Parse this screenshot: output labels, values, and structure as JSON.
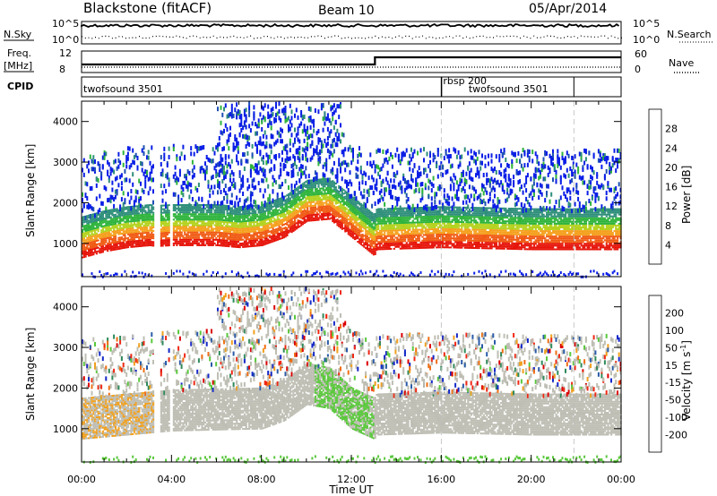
{
  "header": {
    "station": "Blackstone (fitACF)",
    "beam": "Beam 10",
    "date": "05/Apr/2014"
  },
  "strip_labels": {
    "nsky": "N.Sky",
    "nsearch": "N.Search",
    "freq_line1": "Freq.",
    "freq_line2": "[MHz]",
    "nave": "Nave",
    "cpid": "CPID"
  },
  "strip_ticks": {
    "nsky_left": [
      "10^5",
      "10^0"
    ],
    "nsky_right": [
      "10^5",
      "10^0"
    ],
    "freq_left": [
      "12",
      "8"
    ],
    "freq_right": [
      "60",
      "0"
    ]
  },
  "cpid_segments": [
    {
      "name": "twofsound 3501",
      "start": 0,
      "end": 16
    },
    {
      "name": "rbsp 200",
      "start": 16,
      "end": 16.02
    },
    {
      "name": "twofsound 3501",
      "start": 16.02,
      "end": 21.9
    }
  ],
  "colors": {
    "power": [
      "#0a1ee6",
      "#1e4fb4",
      "#2f8f7a",
      "#2fb43c",
      "#b4d21e",
      "#f5a01e",
      "#f05a14",
      "#e6140a"
    ],
    "velocity": [
      "#1428c8",
      "#2a5aa8",
      "#2e8a5a",
      "#5ac83c",
      "#bebeb4",
      "#b4b4aa",
      "#f0a01e",
      "#f06e14",
      "#f02814",
      "#dc0000"
    ]
  },
  "chart_data": [
    {
      "type": "heatmap",
      "title": "Power",
      "ylabel": "Slant Range [km]",
      "xlabel": "Time UT",
      "xlim": [
        0,
        24
      ],
      "ylim": [
        180,
        4500
      ],
      "x_ticks": [
        "00:00",
        "04:00",
        "08:00",
        "12:00",
        "16:00",
        "20:00",
        "00:00"
      ],
      "y_ticks": [
        "1000",
        "2000",
        "3000",
        "4000"
      ],
      "colorbar_label": "Power [dB]",
      "colorbar_ticks": [
        "28",
        "24",
        "20",
        "16",
        "12",
        "8",
        "4"
      ],
      "main_band_center_km": [
        [
          0,
          950
        ],
        [
          1,
          1100
        ],
        [
          2,
          1200
        ],
        [
          3,
          1250
        ],
        [
          3.3,
          1230
        ],
        [
          4,
          1250
        ],
        [
          6,
          1250
        ],
        [
          7,
          1200
        ],
        [
          8,
          1250
        ],
        [
          9,
          1450
        ],
        [
          10,
          1850
        ],
        [
          11,
          1900
        ],
        [
          12,
          1450
        ],
        [
          13,
          1000
        ],
        [
          13.1,
          1150
        ],
        [
          16,
          1200
        ],
        [
          20,
          1150
        ],
        [
          24,
          1150
        ]
      ],
      "data_gaps_hours": [
        [
          3.15,
          3.45
        ],
        [
          3.85,
          4.05
        ]
      ]
    },
    {
      "type": "heatmap",
      "title": "Velocity",
      "ylabel": "Slant Range [km]",
      "xlabel": "Time UT",
      "xlim": [
        0,
        24
      ],
      "ylim": [
        180,
        4500
      ],
      "x_ticks": [
        "00:00",
        "04:00",
        "08:00",
        "12:00",
        "16:00",
        "20:00",
        "00:00"
      ],
      "y_ticks": [
        "1000",
        "2000",
        "3000",
        "4000"
      ],
      "colorbar_label": "Velocity [m s^-1]",
      "colorbar_ticks": [
        "200",
        "100",
        "50",
        "15",
        "-15",
        "-50",
        "-100",
        "-200"
      ],
      "main_band_center_km": [
        [
          0,
          1050
        ],
        [
          2,
          1150
        ],
        [
          4,
          1250
        ],
        [
          8,
          1300
        ],
        [
          9,
          1500
        ],
        [
          10,
          1900
        ],
        [
          11,
          1800
        ],
        [
          12,
          1300
        ],
        [
          13,
          1050
        ],
        [
          13.1,
          1150
        ],
        [
          16,
          1200
        ],
        [
          20,
          1150
        ],
        [
          24,
          1150
        ]
      ]
    }
  ],
  "axis_label": "Time UT"
}
